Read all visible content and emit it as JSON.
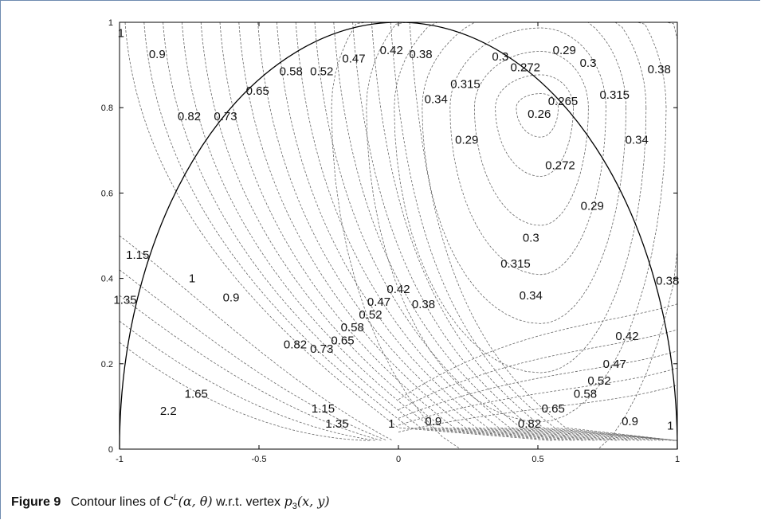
{
  "chart_data": {
    "type": "contour",
    "xlim": [
      -1,
      1
    ],
    "ylim": [
      0,
      1
    ],
    "x_ticks": [
      "-1",
      "-0.5",
      "0",
      "0.5",
      "1"
    ],
    "y_ticks": [
      "0",
      "0.2",
      "0.4",
      "0.6",
      "0.8",
      "1"
    ],
    "boundary": "semicircle x^2 + y^2 = 1",
    "contour_labels": [
      {
        "text": "1",
        "x": -0.995,
        "y": 0.975
      },
      {
        "text": "0.9",
        "x": -0.865,
        "y": 0.925
      },
      {
        "text": "0.82",
        "x": -0.75,
        "y": 0.78
      },
      {
        "text": "0.73",
        "x": -0.62,
        "y": 0.78
      },
      {
        "text": "0.65",
        "x": -0.505,
        "y": 0.84
      },
      {
        "text": "0.58",
        "x": -0.385,
        "y": 0.885
      },
      {
        "text": "0.52",
        "x": -0.275,
        "y": 0.885
      },
      {
        "text": "0.47",
        "x": -0.16,
        "y": 0.915
      },
      {
        "text": "0.42",
        "x": -0.025,
        "y": 0.935
      },
      {
        "text": "0.38",
        "x": 0.08,
        "y": 0.925
      },
      {
        "text": "0.34",
        "x": 0.135,
        "y": 0.82
      },
      {
        "text": "0.315",
        "x": 0.24,
        "y": 0.855
      },
      {
        "text": "0.3",
        "x": 0.365,
        "y": 0.92
      },
      {
        "text": "0.272",
        "x": 0.455,
        "y": 0.895
      },
      {
        "text": "0.29",
        "x": 0.595,
        "y": 0.935
      },
      {
        "text": "0.3",
        "x": 0.68,
        "y": 0.905
      },
      {
        "text": "0.315",
        "x": 0.775,
        "y": 0.83
      },
      {
        "text": "0.38",
        "x": 0.935,
        "y": 0.89
      },
      {
        "text": "0.265",
        "x": 0.59,
        "y": 0.815
      },
      {
        "text": "0.26",
        "x": 0.505,
        "y": 0.785
      },
      {
        "text": "0.29",
        "x": 0.245,
        "y": 0.725
      },
      {
        "text": "0.34",
        "x": 0.855,
        "y": 0.725
      },
      {
        "text": "0.272",
        "x": 0.58,
        "y": 0.665
      },
      {
        "text": "0.29",
        "x": 0.695,
        "y": 0.57
      },
      {
        "text": "0.3",
        "x": 0.475,
        "y": 0.495
      },
      {
        "text": "0.315",
        "x": 0.42,
        "y": 0.435
      },
      {
        "text": "0.34",
        "x": 0.475,
        "y": 0.36
      },
      {
        "text": "0.38",
        "x": 0.965,
        "y": 0.395
      },
      {
        "text": "1.15",
        "x": -0.935,
        "y": 0.455
      },
      {
        "text": "1.35",
        "x": -0.98,
        "y": 0.35
      },
      {
        "text": "1",
        "x": -0.74,
        "y": 0.4
      },
      {
        "text": "0.9",
        "x": -0.6,
        "y": 0.355
      },
      {
        "text": "0.82",
        "x": -0.37,
        "y": 0.245
      },
      {
        "text": "0.73",
        "x": -0.275,
        "y": 0.235
      },
      {
        "text": "0.65",
        "x": -0.2,
        "y": 0.255
      },
      {
        "text": "0.58",
        "x": -0.165,
        "y": 0.285
      },
      {
        "text": "0.52",
        "x": -0.1,
        "y": 0.315
      },
      {
        "text": "0.47",
        "x": -0.07,
        "y": 0.345
      },
      {
        "text": "0.42",
        "x": 0.0,
        "y": 0.375
      },
      {
        "text": "0.38",
        "x": 0.09,
        "y": 0.34
      },
      {
        "text": "0.42",
        "x": 0.82,
        "y": 0.265
      },
      {
        "text": "0.47",
        "x": 0.775,
        "y": 0.2
      },
      {
        "text": "0.52",
        "x": 0.72,
        "y": 0.16
      },
      {
        "text": "0.58",
        "x": 0.67,
        "y": 0.13
      },
      {
        "text": "0.65",
        "x": 0.555,
        "y": 0.095
      },
      {
        "text": "1.65",
        "x": -0.725,
        "y": 0.13
      },
      {
        "text": "2.2",
        "x": -0.825,
        "y": 0.09
      },
      {
        "text": "1.15",
        "x": -0.27,
        "y": 0.095
      },
      {
        "text": "1.35",
        "x": -0.22,
        "y": 0.06
      },
      {
        "text": "1",
        "x": -0.025,
        "y": 0.06
      },
      {
        "text": "0.9",
        "x": 0.125,
        "y": 0.065
      },
      {
        "text": "0.82",
        "x": 0.47,
        "y": 0.06
      },
      {
        "text": "0.9",
        "x": 0.83,
        "y": 0.065
      },
      {
        "text": "1",
        "x": 0.975,
        "y": 0.055
      }
    ]
  },
  "caption": {
    "label": "Figure 9",
    "text_1": "Contour lines of",
    "C": "C",
    "sup": "L",
    "args": "(α, θ)",
    "text_2": "w.r.t. vertex",
    "p": "p",
    "sub": "3",
    "args2": "(x, y)"
  }
}
